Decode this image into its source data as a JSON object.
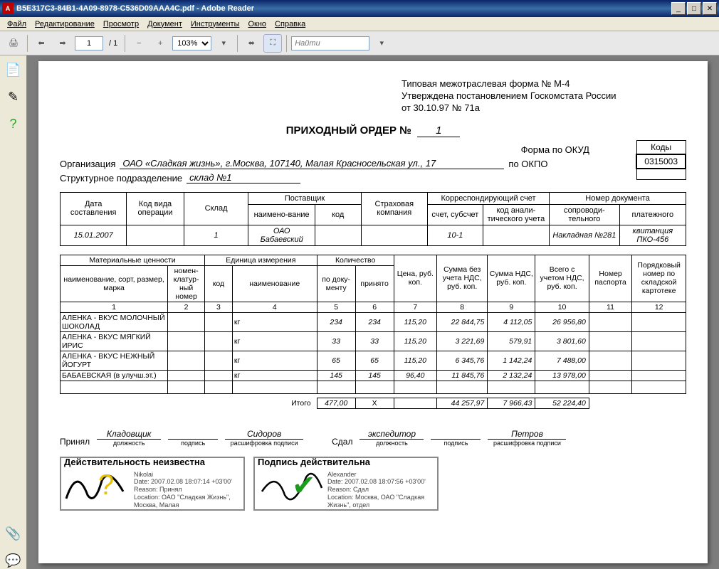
{
  "window": {
    "title": "B5E317C3-84B1-4A09-8978-C536D09AAA4C.pdf - Adobe Reader"
  },
  "menu": {
    "file": "Файл",
    "edit": "Редактирование",
    "view": "Просмотр",
    "document": "Документ",
    "tools": "Инструменты",
    "window": "Окно",
    "help": "Справка"
  },
  "toolbar": {
    "page_current": "1",
    "page_total": "/ 1",
    "zoom": "103%",
    "find_placeholder": "Найти"
  },
  "doc": {
    "approval_line1": "Типовая межотраслевая форма № М-4",
    "approval_line2": "Утверждена постановлением Госкомстата России",
    "approval_line3": "от 30.10.97 № 71а",
    "title_label": "ПРИХОДНЫЙ ОРДЕР  №",
    "title_number": "1",
    "codes_label": "Коды",
    "form_okud_label": "Форма по ОКУД",
    "form_okud": "0315003",
    "okpo_label": "по ОКПО",
    "okpo": "",
    "org_label": "Организация",
    "org_value": "ОАО «Сладкая жизнь», г.Москва, 107140, Малая Красносельская ул., 17",
    "dept_label": "Структурное подразделение",
    "dept_value": "склад №1",
    "header_table": {
      "cols": [
        "Дата составления",
        "Код вида операции",
        "Склад",
        "Поставщик",
        "Страховая компания",
        "Корреспондирующий счет",
        "Номер документа"
      ],
      "sub_supplier": [
        "наимено-вание",
        "код"
      ],
      "sub_account": [
        "счет, субсчет",
        "код анали-тического учета"
      ],
      "sub_docnum": [
        "сопроводи-тельного",
        "платежного"
      ],
      "row": [
        "15.01.2007",
        "",
        "1",
        "ОАО Бабаевский",
        "",
        "",
        "10-1",
        "",
        "Накладная №281",
        "квитанция ПКО-456"
      ]
    },
    "items_table": {
      "head": {
        "mat": "Материальные ценности",
        "unit": "Единица измерения",
        "qty": "Количество",
        "price": "Цена, руб. коп.",
        "sum_novat": "Сумма без учета НДС, руб. коп.",
        "sum_vat": "Сумма НДС, руб. коп.",
        "sum_total": "Всего с учетом НДС, руб. коп.",
        "passport": "Номер паспорта",
        "cardnum": "Порядковый номер по складской картотеке",
        "mat_name": "наименование, сорт, размер, марка",
        "mat_code": "номен-клатур-ный номер",
        "unit_code": "код",
        "unit_name": "наименование",
        "qty_doc": "по доку-менту",
        "qty_acc": "принято"
      },
      "colnums": [
        "1",
        "2",
        "3",
        "4",
        "5",
        "6",
        "7",
        "8",
        "9",
        "10",
        "11",
        "12"
      ],
      "rows": [
        {
          "name": "АЛЕНКА - ВКУС МОЛОЧНЫЙ ШОКОЛАД",
          "code": "",
          "ucode": "",
          "uname": "кг",
          "qdoc": "234",
          "qacc": "234",
          "price": "115,20",
          "snv": "22 844,75",
          "svat": "4 112,05",
          "stot": "26 956,80",
          "pass": "",
          "card": ""
        },
        {
          "name": "АЛЕНКА - ВКУС МЯГКИЙ ИРИС",
          "code": "",
          "ucode": "",
          "uname": "кг",
          "qdoc": "33",
          "qacc": "33",
          "price": "115,20",
          "snv": "3 221,69",
          "svat": "579,91",
          "stot": "3 801,60",
          "pass": "",
          "card": ""
        },
        {
          "name": "АЛЕНКА - ВКУС НЕЖНЫЙ ЙОГУРТ",
          "code": "",
          "ucode": "",
          "uname": "кг",
          "qdoc": "65",
          "qacc": "65",
          "price": "115,20",
          "snv": "6 345,76",
          "svat": "1 142,24",
          "stot": "7 488,00",
          "pass": "",
          "card": ""
        },
        {
          "name": "БАБАЕВСКАЯ (в улучш.эт.)",
          "code": "",
          "ucode": "",
          "uname": "кг",
          "qdoc": "145",
          "qacc": "145",
          "price": "96,40",
          "snv": "11 845,76",
          "svat": "2 132,24",
          "stot": "13 978,00",
          "pass": "",
          "card": ""
        }
      ],
      "totals_label": "Итого",
      "totals": {
        "qdoc": "477,00",
        "qacc": "Х",
        "price": "",
        "snv": "44 257,97",
        "svat": "7 966,43",
        "stot": "52 224,40"
      }
    },
    "sig": {
      "received_label": "Принял",
      "received_pos": "Кладовщик",
      "received_name": "Сидоров",
      "gave_label": "Сдал",
      "gave_pos": "экспедитор",
      "gave_name": "Петров",
      "sub_pos": "должность",
      "sub_sign": "подпись",
      "sub_name": "расшифровка подписи"
    },
    "stamps": {
      "s1_title": "Действительность неизвестна",
      "s1_meta": "Nikolai\nDate: 2007.02.08 18:07:14 +03'00'\nReason: Принял\nLocation: ОАО \"Сладкая Жизнь\", Москва, Малая",
      "s2_title": "Подпись действительна",
      "s2_meta": "Alexander\nDate: 2007.02.08 18:07:56 +03'00'\nReason: Сдал\nLocation: Москва, ОАО \"Сладкая Жизнь\", отдел"
    }
  }
}
